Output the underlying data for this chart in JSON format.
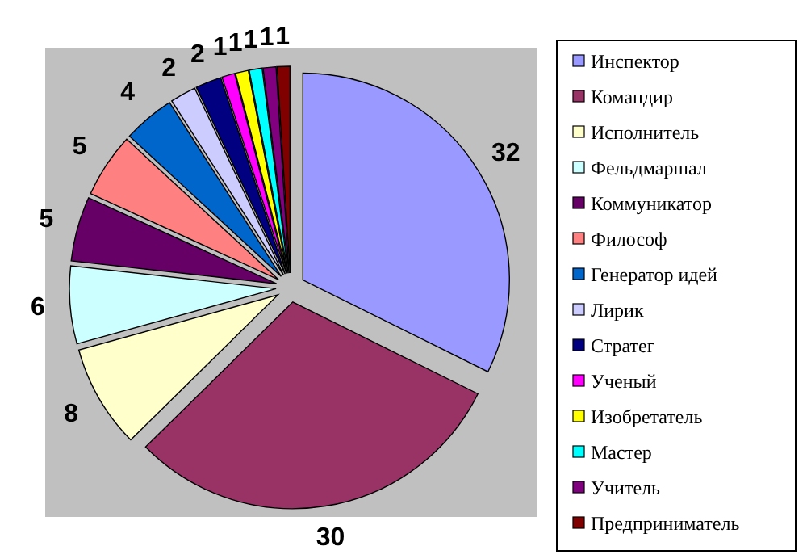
{
  "chart_data": {
    "type": "pie",
    "categories": [
      "Инспектор",
      "Командир",
      "Исполнитель",
      "Фельдмаршал",
      "Коммуникатор",
      "Философ",
      "Генератор идей",
      "Лирик",
      "Стратег",
      "Ученый",
      "Изобретатель",
      "Мастер",
      "Учитель",
      "Предприниматель"
    ],
    "values": [
      32,
      30,
      8,
      6,
      5,
      5,
      4,
      2,
      2,
      1,
      1,
      1,
      1,
      1
    ],
    "colors": [
      "#9999ff",
      "#993366",
      "#ffffcc",
      "#ccffff",
      "#660066",
      "#ff8080",
      "#0066cc",
      "#ccccff",
      "#000080",
      "#ff00ff",
      "#ffff00",
      "#00ffff",
      "#800080",
      "#800000"
    ],
    "data_labels": true,
    "legend": "right"
  }
}
